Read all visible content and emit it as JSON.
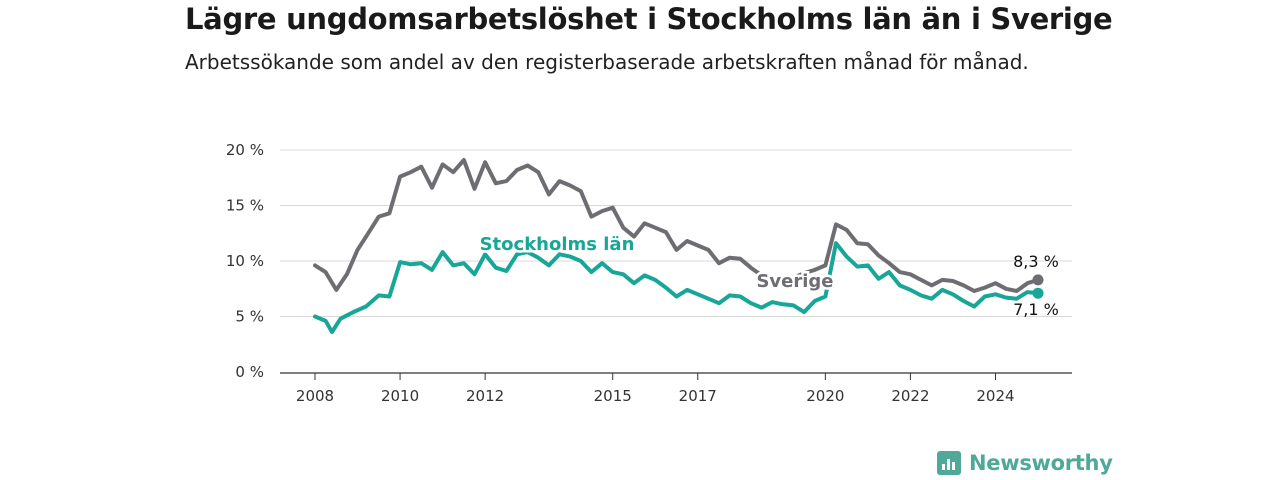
{
  "title": "Lägre ungdomsarbetslöshet i Stockholms län än i Sverige",
  "subtitle": "Arbetssökande som andel av den registerbaserade arbetskraften månad för månad.",
  "brand": {
    "name": "Newsworthy",
    "color": "#4fa89a"
  },
  "chart_data": {
    "type": "line",
    "x_unit": "year (monthly data)",
    "y_unit": "%",
    "ylim": [
      0,
      20
    ],
    "xlim": [
      2008,
      2025.25
    ],
    "y_ticks": [
      0,
      5,
      10,
      15,
      20
    ],
    "y_tick_labels": [
      "0 %",
      "5 %",
      "10 %",
      "15 %",
      "20 %"
    ],
    "x_ticks": [
      2008,
      2010,
      2012,
      2015,
      2017,
      2020,
      2022,
      2024
    ],
    "grid": "horizontal",
    "legend": "direct labels on lines",
    "series": [
      {
        "name": "Sverige",
        "color": "#6d6d73",
        "end_label": "8,3 %",
        "points": [
          [
            2008.0,
            9.6
          ],
          [
            2008.25,
            9.0
          ],
          [
            2008.5,
            7.4
          ],
          [
            2008.75,
            8.8
          ],
          [
            2009.0,
            11.0
          ],
          [
            2009.25,
            12.5
          ],
          [
            2009.5,
            14.0
          ],
          [
            2009.75,
            14.3
          ],
          [
            2010.0,
            17.6
          ],
          [
            2010.25,
            18.0
          ],
          [
            2010.5,
            18.5
          ],
          [
            2010.75,
            16.6
          ],
          [
            2011.0,
            18.7
          ],
          [
            2011.25,
            18.0
          ],
          [
            2011.5,
            19.1
          ],
          [
            2011.75,
            16.5
          ],
          [
            2012.0,
            18.9
          ],
          [
            2012.25,
            17.0
          ],
          [
            2012.5,
            17.2
          ],
          [
            2012.75,
            18.2
          ],
          [
            2013.0,
            18.6
          ],
          [
            2013.25,
            18.0
          ],
          [
            2013.5,
            16.0
          ],
          [
            2013.75,
            17.2
          ],
          [
            2014.0,
            16.8
          ],
          [
            2014.25,
            16.3
          ],
          [
            2014.5,
            14.0
          ],
          [
            2014.75,
            14.5
          ],
          [
            2015.0,
            14.8
          ],
          [
            2015.25,
            13.0
          ],
          [
            2015.5,
            12.2
          ],
          [
            2015.75,
            13.4
          ],
          [
            2016.0,
            13.0
          ],
          [
            2016.25,
            12.6
          ],
          [
            2016.5,
            11.0
          ],
          [
            2016.75,
            11.8
          ],
          [
            2017.0,
            11.4
          ],
          [
            2017.25,
            11.0
          ],
          [
            2017.5,
            9.8
          ],
          [
            2017.75,
            10.3
          ],
          [
            2018.0,
            10.2
          ],
          [
            2018.25,
            9.4
          ],
          [
            2018.5,
            8.7
          ],
          [
            2019.0,
            8.3
          ],
          [
            2019.25,
            8.5
          ],
          [
            2019.5,
            8.9
          ],
          [
            2019.75,
            9.2
          ],
          [
            2020.0,
            9.6
          ],
          [
            2020.25,
            13.3
          ],
          [
            2020.5,
            12.8
          ],
          [
            2020.75,
            11.6
          ],
          [
            2021.0,
            11.5
          ],
          [
            2021.25,
            10.5
          ],
          [
            2021.5,
            9.8
          ],
          [
            2021.75,
            9.0
          ],
          [
            2022.0,
            8.8
          ],
          [
            2022.25,
            8.3
          ],
          [
            2022.5,
            7.8
          ],
          [
            2022.75,
            8.3
          ],
          [
            2023.0,
            8.2
          ],
          [
            2023.25,
            7.8
          ],
          [
            2023.5,
            7.3
          ],
          [
            2023.75,
            7.6
          ],
          [
            2024.0,
            8.0
          ],
          [
            2024.25,
            7.5
          ],
          [
            2024.5,
            7.3
          ],
          [
            2024.75,
            8.0
          ],
          [
            2025.0,
            8.3
          ]
        ]
      },
      {
        "name": "Stockholms län",
        "color": "#17a697",
        "end_label": "7,1 %",
        "points": [
          [
            2008.0,
            5.0
          ],
          [
            2008.25,
            4.6
          ],
          [
            2008.4,
            3.6
          ],
          [
            2008.6,
            4.8
          ],
          [
            2008.9,
            5.4
          ],
          [
            2009.2,
            5.9
          ],
          [
            2009.5,
            6.9
          ],
          [
            2009.75,
            6.8
          ],
          [
            2010.0,
            9.9
          ],
          [
            2010.25,
            9.7
          ],
          [
            2010.5,
            9.8
          ],
          [
            2010.75,
            9.2
          ],
          [
            2011.0,
            10.8
          ],
          [
            2011.25,
            9.6
          ],
          [
            2011.5,
            9.8
          ],
          [
            2011.75,
            8.8
          ],
          [
            2012.0,
            10.6
          ],
          [
            2012.25,
            9.4
          ],
          [
            2012.5,
            9.1
          ],
          [
            2012.75,
            10.6
          ],
          [
            2013.0,
            10.8
          ],
          [
            2013.25,
            10.3
          ],
          [
            2013.5,
            9.6
          ],
          [
            2013.75,
            10.6
          ],
          [
            2014.0,
            10.4
          ],
          [
            2014.25,
            10.0
          ],
          [
            2014.5,
            9.0
          ],
          [
            2014.75,
            9.8
          ],
          [
            2015.0,
            9.0
          ],
          [
            2015.25,
            8.8
          ],
          [
            2015.5,
            8.0
          ],
          [
            2015.75,
            8.7
          ],
          [
            2016.0,
            8.3
          ],
          [
            2016.25,
            7.6
          ],
          [
            2016.5,
            6.8
          ],
          [
            2016.75,
            7.4
          ],
          [
            2017.0,
            7.0
          ],
          [
            2017.25,
            6.6
          ],
          [
            2017.5,
            6.2
          ],
          [
            2017.75,
            6.9
          ],
          [
            2018.0,
            6.8
          ],
          [
            2018.25,
            6.2
          ],
          [
            2018.5,
            5.8
          ],
          [
            2018.75,
            6.3
          ],
          [
            2019.0,
            6.1
          ],
          [
            2019.25,
            6.0
          ],
          [
            2019.5,
            5.4
          ],
          [
            2019.75,
            6.4
          ],
          [
            2020.0,
            6.8
          ],
          [
            2020.25,
            11.6
          ],
          [
            2020.5,
            10.4
          ],
          [
            2020.75,
            9.5
          ],
          [
            2021.0,
            9.6
          ],
          [
            2021.25,
            8.4
          ],
          [
            2021.5,
            9.0
          ],
          [
            2021.75,
            7.8
          ],
          [
            2022.0,
            7.4
          ],
          [
            2022.25,
            6.9
          ],
          [
            2022.5,
            6.6
          ],
          [
            2022.75,
            7.4
          ],
          [
            2023.0,
            7.0
          ],
          [
            2023.25,
            6.4
          ],
          [
            2023.5,
            5.9
          ],
          [
            2023.75,
            6.8
          ],
          [
            2024.0,
            7.0
          ],
          [
            2024.25,
            6.7
          ],
          [
            2024.5,
            6.6
          ],
          [
            2024.75,
            7.2
          ],
          [
            2025.0,
            7.1
          ]
        ]
      }
    ]
  }
}
